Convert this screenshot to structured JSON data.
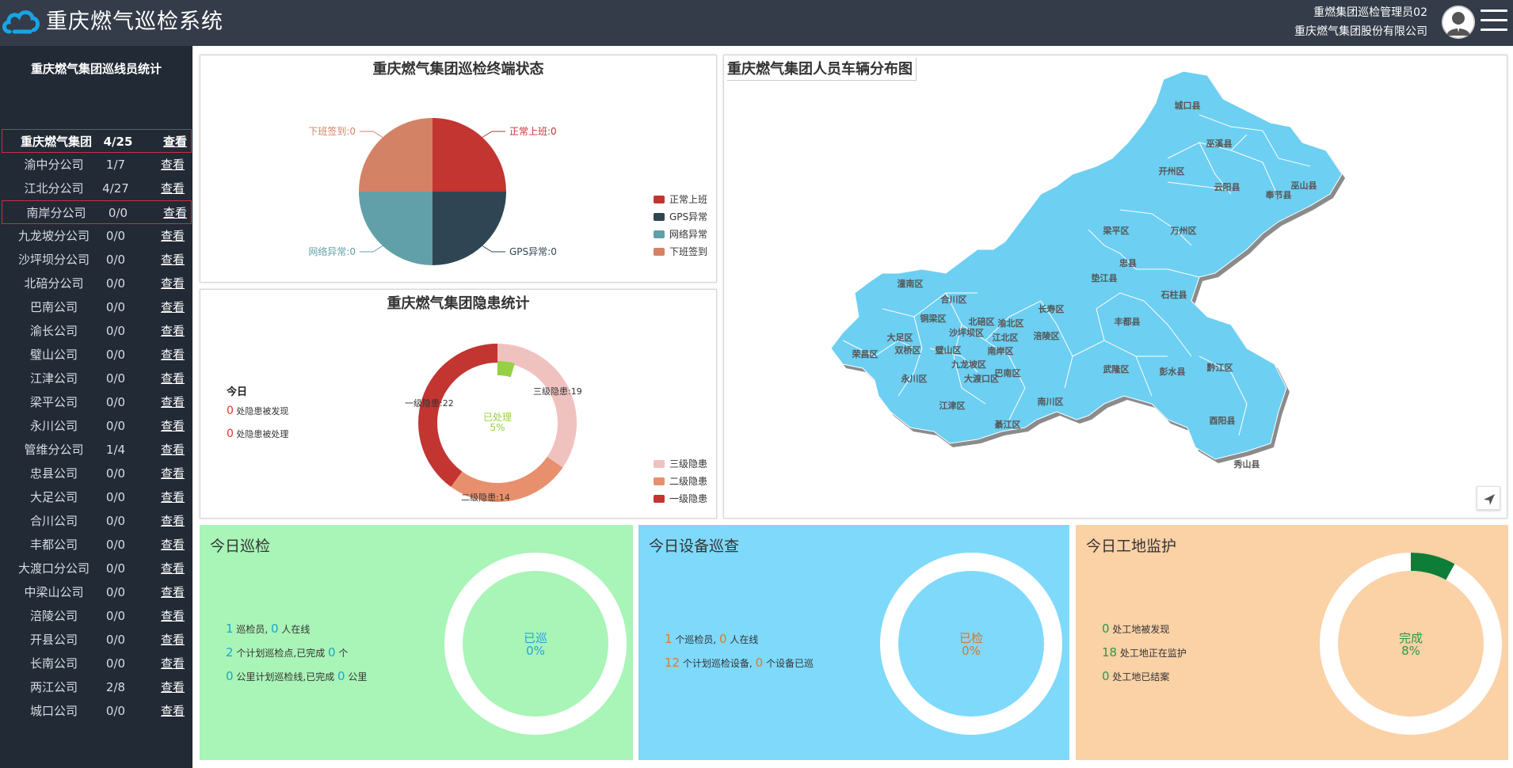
{
  "header": {
    "title": "重庆燃气巡检系统",
    "user_role": "重燃集团巡检管理员02",
    "company": "重庆燃气集团股份有限公司"
  },
  "sidebar": {
    "title": "重庆燃气集团巡线员统计",
    "link_label": "查看",
    "items": [
      {
        "name": "重庆燃气集团",
        "count": "4/25"
      },
      {
        "name": "渝中分公司",
        "count": "1/7"
      },
      {
        "name": "江北分公司",
        "count": "4/27"
      },
      {
        "name": "南岸分公司",
        "count": "0/0"
      },
      {
        "name": "九龙坡分公司",
        "count": "0/0"
      },
      {
        "name": "沙坪坝分公司",
        "count": "0/0"
      },
      {
        "name": "北碚分公司",
        "count": "0/0"
      },
      {
        "name": "巴南公司",
        "count": "0/0"
      },
      {
        "name": "渝长公司",
        "count": "0/0"
      },
      {
        "name": "璧山公司",
        "count": "0/0"
      },
      {
        "name": "江津公司",
        "count": "0/0"
      },
      {
        "name": "梁平公司",
        "count": "0/0"
      },
      {
        "name": "永川公司",
        "count": "0/0"
      },
      {
        "name": "管维分公司",
        "count": "1/4"
      },
      {
        "name": "忠县公司",
        "count": "0/0"
      },
      {
        "name": "大足公司",
        "count": "0/0"
      },
      {
        "name": "合川公司",
        "count": "0/0"
      },
      {
        "name": "丰都公司",
        "count": "0/0"
      },
      {
        "name": "大渡口分公司",
        "count": "0/0"
      },
      {
        "name": "中梁山公司",
        "count": "0/0"
      },
      {
        "name": "涪陵公司",
        "count": "0/0"
      },
      {
        "name": "开县公司",
        "count": "0/0"
      },
      {
        "name": "长南公司",
        "count": "0/0"
      },
      {
        "name": "两江公司",
        "count": "2/8"
      },
      {
        "name": "城口公司",
        "count": "0/0"
      }
    ]
  },
  "terminal": {
    "title": "重庆燃气集团巡检终端状态",
    "labels": {
      "normal": "正常上班:0",
      "gps": "GPS异常:0",
      "network": "网络异常:0",
      "signoff": "下班签到:0"
    },
    "legend": [
      {
        "name": "正常上班",
        "color": "#c23531"
      },
      {
        "name": "GPS异常",
        "color": "#2f4554"
      },
      {
        "name": "网络异常",
        "color": "#61a0a8"
      },
      {
        "name": "下班签到",
        "color": "#d48265"
      }
    ]
  },
  "hazard": {
    "title": "重庆燃气集团隐患统计",
    "today": "今日",
    "found_value": "0",
    "found_text": "处隐患被发现",
    "handled_value": "0",
    "handled_text": "处隐患被处理",
    "center_label": "已处理",
    "center_value": "5%",
    "labels": {
      "level1": "一级隐患:22",
      "level2": "二级隐患:14",
      "level3": "三级隐患:19"
    },
    "legend": [
      {
        "name": "三级隐患",
        "color": "#f0c2bf"
      },
      {
        "name": "二级隐患",
        "color": "#e8906e"
      },
      {
        "name": "一级隐患",
        "color": "#c23531"
      }
    ]
  },
  "map": {
    "title": "重庆燃气集团人员车辆分布图",
    "districts": [
      "城口县",
      "巫溪县",
      "开州区",
      "云阳县",
      "奉节县",
      "巫山县",
      "梁平区",
      "万州区",
      "忠县",
      "垫江县",
      "石柱县",
      "潼南区",
      "合川区",
      "铜梁区",
      "北碚区",
      "渝北区",
      "长寿区",
      "大足区",
      "沙坪坝区",
      "江北区",
      "涪陵区",
      "丰都县",
      "荣昌区",
      "双桥区",
      "璧山区",
      "南岸区",
      "九龙坡区",
      "永川区",
      "大渡口区",
      "巴南区",
      "武隆区",
      "彭水县",
      "黔江区",
      "江津区",
      "南川区",
      "綦江区",
      "酉阳县",
      "秀山县"
    ]
  },
  "chart_data": [
    {
      "type": "pie",
      "title": "重庆燃气集团巡检终端状态",
      "categories": [
        "正常上班",
        "GPS异常",
        "网络异常",
        "下班签到"
      ],
      "values": [
        0,
        0,
        0,
        0
      ]
    },
    {
      "type": "pie",
      "title": "重庆燃气集团隐患统计",
      "categories": [
        "三级隐患",
        "二级隐患",
        "一级隐患"
      ],
      "values": [
        19,
        14,
        22
      ],
      "center_label": "已处理 5%",
      "highlight": {
        "name": "已处理",
        "value": 0.05
      }
    }
  ],
  "stats": [
    {
      "title": "今日巡检",
      "lines": [
        [
          "1",
          "巡检员,",
          "0",
          "人在线"
        ],
        [
          "2",
          "个计划巡检点,已完成",
          "0",
          "个"
        ],
        [
          "0",
          "公里计划巡检线,已完成",
          "0",
          "公里"
        ]
      ],
      "ring_label": "已巡",
      "ring_value": "0%",
      "progress": 0
    },
    {
      "title": "今日设备巡查",
      "lines": [
        [
          "1",
          "个巡检员,",
          "0",
          "人在线"
        ],
        [
          "12",
          "个计划巡检设备,",
          "0",
          "个设备已巡"
        ]
      ],
      "ring_label": "已检",
      "ring_value": "0%",
      "progress": 0
    },
    {
      "title": "今日工地监护",
      "lines": [
        [
          "0",
          "处工地被发现"
        ],
        [
          "18",
          "处工地正在监护"
        ],
        [
          "0",
          "处工地已结案"
        ]
      ],
      "ring_label": "完成",
      "ring_value": "8%",
      "progress": 0.08
    }
  ],
  "colors": {
    "stat1_bg": "#a9f4b7",
    "stat2_bg": "#7fd9fb",
    "stat3_bg": "#fbd1a6",
    "map_fill": "#6dcff2"
  }
}
